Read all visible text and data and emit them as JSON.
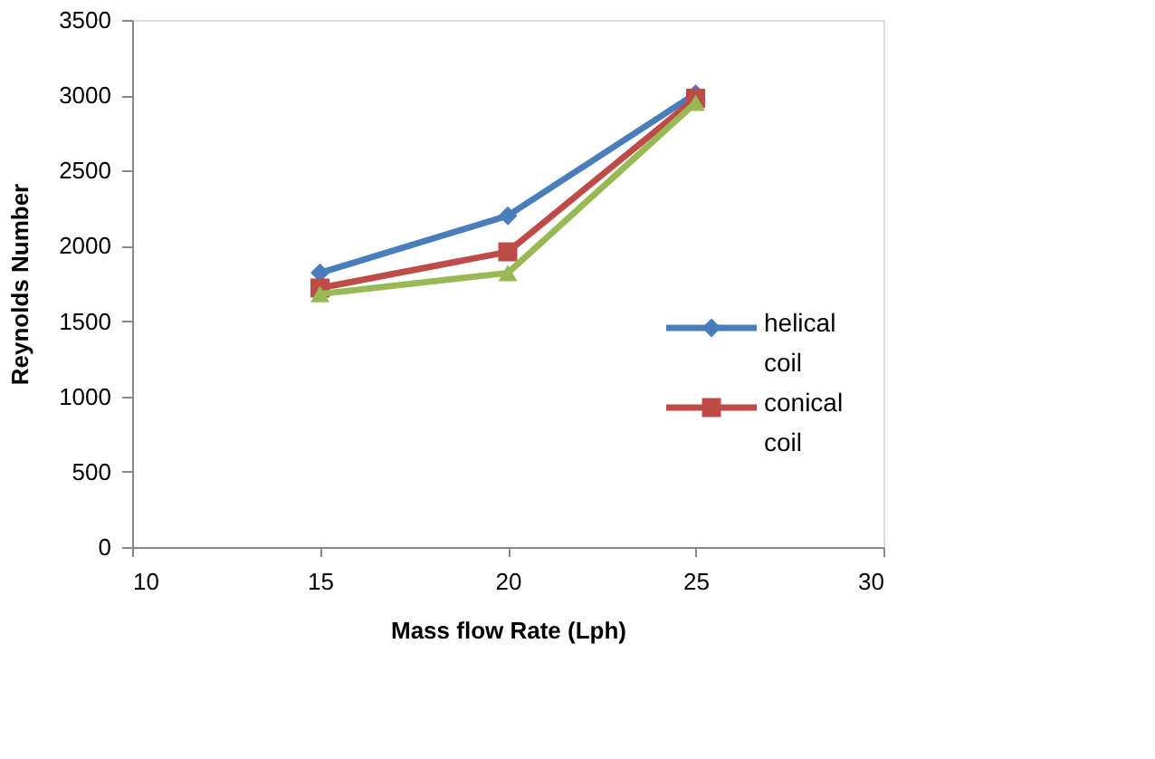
{
  "chart_data": {
    "type": "line",
    "xlabel": "Mass flow Rate (Lph)",
    "ylabel": "Reynolds Number",
    "x": [
      15,
      20,
      25
    ],
    "series": [
      {
        "name": "helical coil",
        "color": "#4a7ebb",
        "marker": "diamond",
        "values": [
          1820,
          2200,
          3010
        ]
      },
      {
        "name": "conical coil",
        "color": "#be4b48",
        "marker": "square",
        "values": [
          1720,
          1960,
          2980
        ]
      },
      {
        "color": "#98b954",
        "marker": "triangle",
        "values": [
          1680,
          1820,
          2950
        ]
      }
    ],
    "xlim": [
      10,
      30
    ],
    "xticks": [
      10,
      15,
      20,
      25,
      30
    ],
    "ylim": [
      0,
      3500
    ],
    "yticks": [
      0,
      500,
      1000,
      1500,
      2000,
      2500,
      3000,
      3500
    ],
    "grid": false,
    "legend": "right"
  }
}
